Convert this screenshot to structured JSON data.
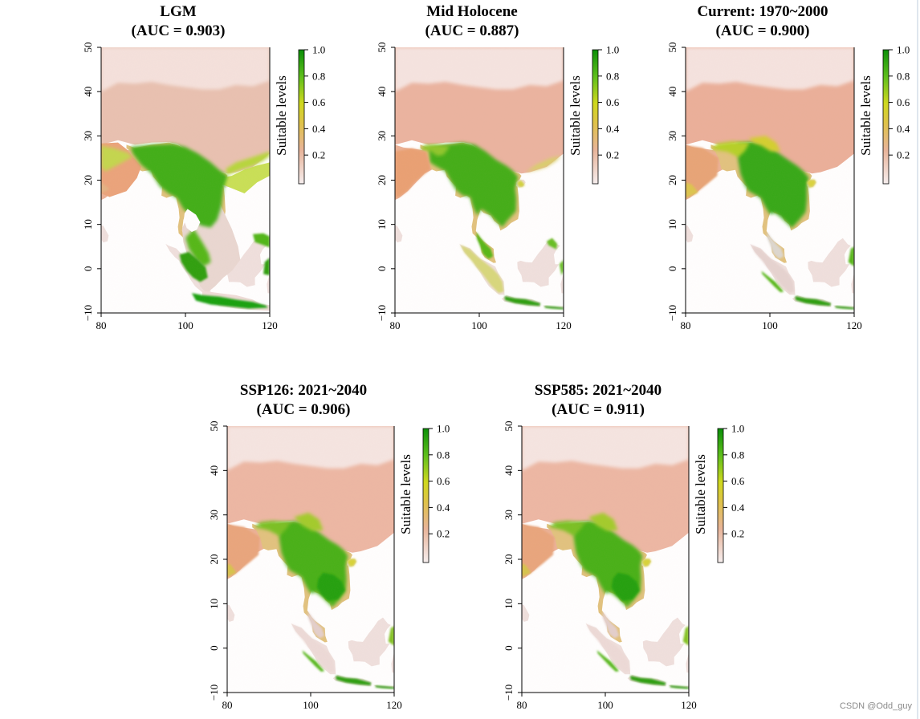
{
  "watermark": "CSDN @Odd_guy",
  "colors": {
    "scale_low": "#f2e4e2",
    "scale_mid_low": "#e7b99a",
    "scale_mid": "#d9cf38",
    "scale_high": "#66c11e",
    "scale_top": "#0b8f08",
    "ocean": "#ffffff",
    "axis": "#000000"
  },
  "chart_data": [
    {
      "type": "heatmap",
      "title_line1": "LGM",
      "title_line2": "(AUC = 0.903)",
      "auc": 0.903,
      "xlim": [
        80,
        120
      ],
      "ylim": [
        -10,
        50
      ],
      "xticks": [
        80,
        100,
        120
      ],
      "yticks": [
        -10,
        0,
        10,
        20,
        30,
        40,
        50
      ],
      "xtick_labels": [
        "80",
        "100",
        "120"
      ],
      "ytick_labels": [
        "−10",
        "0",
        "10",
        "20",
        "30",
        "40",
        "50"
      ],
      "legend_label": "Suitable levels",
      "legend_range": [
        0,
        1
      ],
      "legend_ticks": [
        "0.2",
        "0.4",
        "0.6",
        "0.8",
        "1.0"
      ],
      "legend_values": [
        0.2,
        0.4,
        0.6,
        0.8,
        1.0
      ],
      "scenario": "lgm"
    },
    {
      "type": "heatmap",
      "title_line1": "Mid Holocene",
      "title_line2": "(AUC = 0.887)",
      "auc": 0.887,
      "xlim": [
        80,
        120
      ],
      "ylim": [
        -10,
        50
      ],
      "xticks": [
        80,
        100,
        120
      ],
      "yticks": [
        -10,
        0,
        10,
        20,
        30,
        40,
        50
      ],
      "xtick_labels": [
        "80",
        "100",
        "120"
      ],
      "ytick_labels": [
        "−10",
        "0",
        "10",
        "20",
        "30",
        "40",
        "50"
      ],
      "legend_label": "Suitable levels",
      "legend_range": [
        0,
        1
      ],
      "legend_ticks": [
        "0.2",
        "0.4",
        "0.6",
        "0.8",
        "1.0"
      ],
      "legend_values": [
        0.2,
        0.4,
        0.6,
        0.8,
        1.0
      ],
      "scenario": "mid"
    },
    {
      "type": "heatmap",
      "title_line1": "Current: 1970~2000",
      "title_line2": "(AUC = 0.900)",
      "auc": 0.9,
      "xlim": [
        80,
        120
      ],
      "ylim": [
        -10,
        50
      ],
      "xticks": [
        80,
        100,
        120
      ],
      "yticks": [
        -10,
        0,
        10,
        20,
        30,
        40,
        50
      ],
      "xtick_labels": [
        "80",
        "100",
        "120"
      ],
      "ytick_labels": [
        "−10",
        "0",
        "10",
        "20",
        "30",
        "40",
        "50"
      ],
      "legend_label": "Suitable levels",
      "legend_range": [
        0,
        1
      ],
      "legend_ticks": [
        "0.2",
        "0.4",
        "0.6",
        "0.8",
        "1.0"
      ],
      "legend_values": [
        0.2,
        0.4,
        0.6,
        0.8,
        1.0
      ],
      "scenario": "current"
    },
    {
      "type": "heatmap",
      "title_line1": "SSP126: 2021~2040",
      "title_line2": "(AUC = 0.906)",
      "auc": 0.906,
      "xlim": [
        80,
        120
      ],
      "ylim": [
        -10,
        50
      ],
      "xticks": [
        80,
        100,
        120
      ],
      "yticks": [
        -10,
        0,
        10,
        20,
        30,
        40,
        50
      ],
      "xtick_labels": [
        "80",
        "100",
        "120"
      ],
      "ytick_labels": [
        "−10",
        "0",
        "10",
        "20",
        "30",
        "40",
        "50"
      ],
      "legend_label": "Suitable levels",
      "legend_range": [
        0,
        1
      ],
      "legend_ticks": [
        "0.2",
        "0.4",
        "0.6",
        "0.8",
        "1.0"
      ],
      "legend_values": [
        0.2,
        0.4,
        0.6,
        0.8,
        1.0
      ],
      "scenario": "future"
    },
    {
      "type": "heatmap",
      "title_line1": "SSP585: 2021~2040",
      "title_line2": "(AUC = 0.911)",
      "auc": 0.911,
      "xlim": [
        80,
        120
      ],
      "ylim": [
        -10,
        50
      ],
      "xticks": [
        80,
        100,
        120
      ],
      "yticks": [
        -10,
        0,
        10,
        20,
        30,
        40,
        50
      ],
      "xtick_labels": [
        "80",
        "100",
        "120"
      ],
      "ytick_labels": [
        "−10",
        "0",
        "10",
        "20",
        "30",
        "40",
        "50"
      ],
      "legend_label": "Suitable levels",
      "legend_range": [
        0,
        1
      ],
      "legend_ticks": [
        "0.2",
        "0.4",
        "0.6",
        "0.8",
        "1.0"
      ],
      "legend_values": [
        0.2,
        0.4,
        0.6,
        0.8,
        1.0
      ],
      "scenario": "future"
    }
  ]
}
